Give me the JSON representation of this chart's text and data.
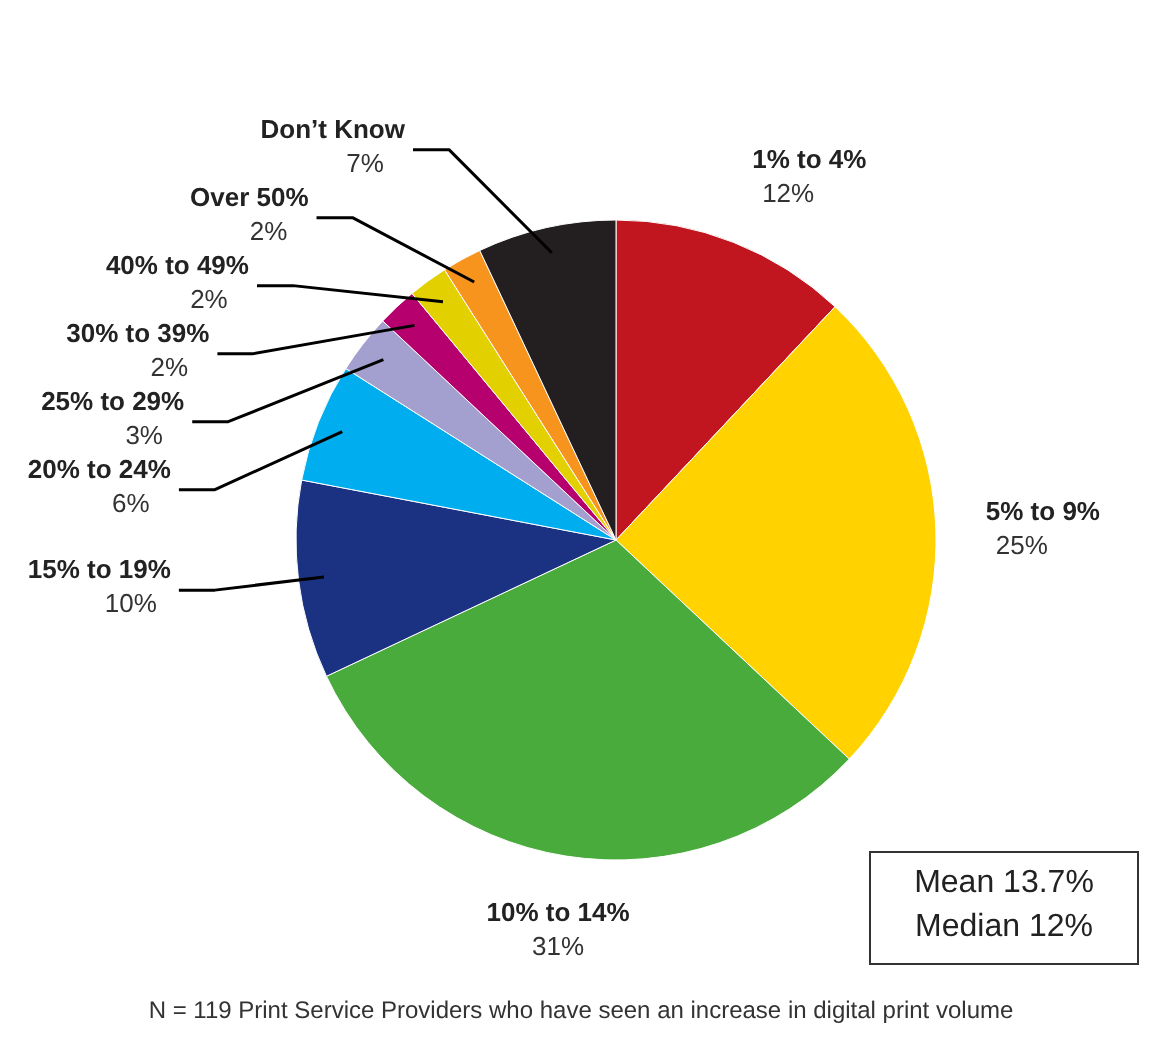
{
  "chart_data": {
    "type": "pie",
    "categories": [
      "1% to 4%",
      "5% to 9%",
      "10% to 14%",
      "15% to 19%",
      "20% to 24%",
      "25% to 29%",
      "30% to 39%",
      "40% to 49%",
      "Over 50%",
      "Don’t Know"
    ],
    "values": [
      12,
      25,
      31,
      10,
      6,
      3,
      2,
      2,
      2,
      7
    ],
    "value_labels": [
      "12%",
      "25%",
      "31%",
      "10%",
      "6%",
      "3%",
      "2%",
      "2%",
      "2%",
      "7%"
    ],
    "colors": [
      "#c1161f",
      "#ffd200",
      "#4aab3d",
      "#1b3282",
      "#00aeef",
      "#a39fcf",
      "#b5006e",
      "#e3d000",
      "#f7941d",
      "#231f20"
    ],
    "annotations": [
      "Mean 13.7%",
      "Median 12%",
      "N = 119 Print Service Providers who have seen an increase in digital print volume"
    ]
  }
}
